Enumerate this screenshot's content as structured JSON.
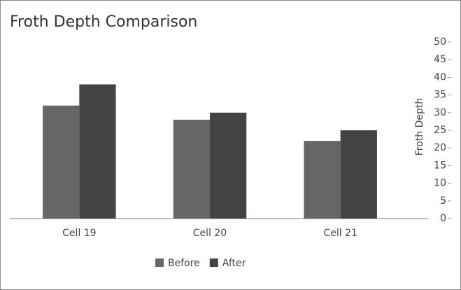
{
  "chart_data": {
    "type": "bar",
    "title": "Froth Depth Comparison",
    "y_label": "Froth Depth",
    "categories": [
      "Cell 19",
      "Cell 20",
      "Cell 21"
    ],
    "series": [
      {
        "name": "Before",
        "color": "#666666",
        "values": [
          32,
          28,
          22
        ]
      },
      {
        "name": "After",
        "color": "#444444",
        "values": [
          38,
          30,
          25
        ]
      }
    ],
    "ylim": [
      0,
      50
    ],
    "yticks": [
      0,
      5,
      10,
      15,
      20,
      25,
      30,
      35,
      40,
      45,
      50
    ],
    "grid": false,
    "legend": "bottom"
  }
}
